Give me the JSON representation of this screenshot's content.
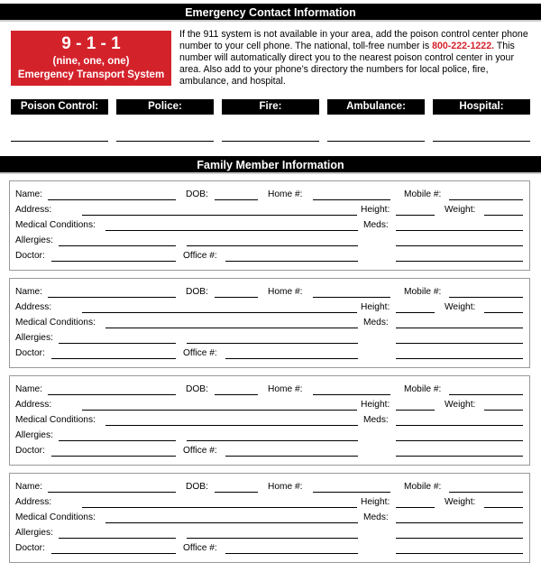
{
  "emergency": {
    "title": "Emergency Contact Information",
    "box": {
      "number": "9 - 1 - 1",
      "spoken": "(nine, one, one)",
      "system": "Emergency Transport System"
    },
    "intro_before": "If the 911 system is not available in your area, add the poison control center phone number to your cell phone. The national, toll-free number is ",
    "phone": "800-222-1222.",
    "intro_after": " This number will automatically direct you to the nearest poison control center in your area. Also add to your phone’s directory the numbers for local police, fire, ambulance, and hospital.",
    "contacts": [
      "Poison Control:",
      "Police:",
      "Fire:",
      "Ambulance:",
      "Hospital:"
    ],
    "accent": "#d4222b"
  },
  "family": {
    "title": "Family Member Information",
    "labels": {
      "name": "Name:",
      "dob": "DOB:",
      "home": "Home #:",
      "mobile": "Mobile #:",
      "address": "Address:",
      "height": "Height:",
      "weight": "Weight:",
      "medical": "Medical Conditions:",
      "meds": "Meds:",
      "allergies": "Allergies:",
      "doctor": "Doctor:",
      "office": "Office #:"
    },
    "card_count": 4
  }
}
